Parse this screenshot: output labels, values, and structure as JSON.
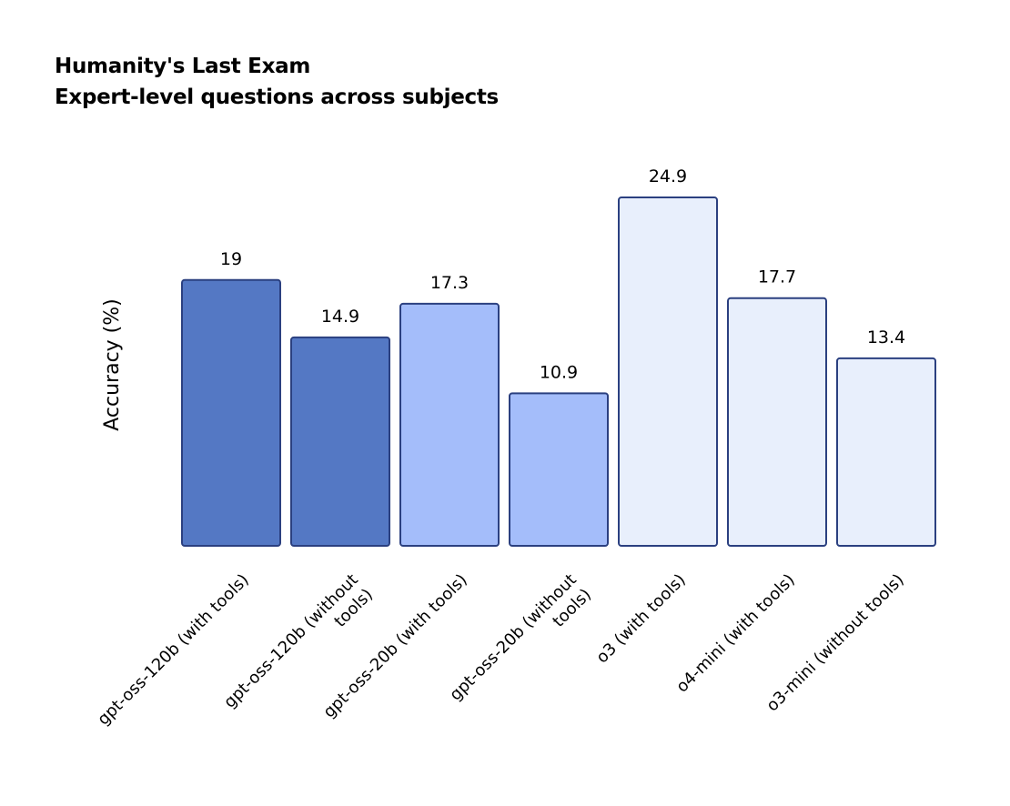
{
  "chart_data": {
    "type": "bar",
    "title": "Humanity's Last Exam",
    "subtitle": "Expert-level questions across subjects",
    "xlabel": "",
    "ylabel": "Accuracy (%)",
    "ylim": [
      0,
      25
    ],
    "grid": false,
    "legend": "none",
    "categories": [
      [
        "gpt-oss-120b (with tools)"
      ],
      [
        "gpt-oss-120b (without",
        "tools)"
      ],
      [
        "gpt-oss-20b (with tools)"
      ],
      [
        "gpt-oss-20b (without",
        "tools)"
      ],
      [
        "o3 (with tools)"
      ],
      [
        "o4-mini (with tools)"
      ],
      [
        "o3-mini (without tools)"
      ]
    ],
    "values": [
      19,
      14.9,
      17.3,
      10.9,
      24.9,
      17.7,
      13.4
    ],
    "value_labels": [
      "19",
      "14.9",
      "17.3",
      "10.9",
      "24.9",
      "17.7",
      "13.4"
    ],
    "bar_colors": [
      "#5478c4",
      "#5478c4",
      "#a4bdfa",
      "#a4bdfa",
      "#e8effc",
      "#e8effc",
      "#e8effc"
    ],
    "bar_edge_color": "#2b4080"
  }
}
